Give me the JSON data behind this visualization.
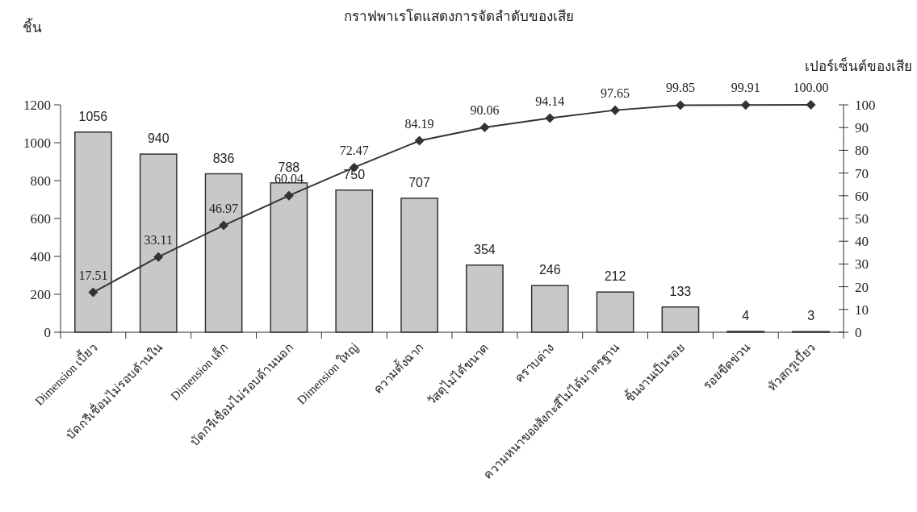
{
  "chart_data": {
    "type": "bar",
    "title": "กราฟพาเรโตแสดงการจัดลำดับของเสีย",
    "ylabel": "ชิ้น",
    "y2label": "เปอร์เซ็นต์ของเสีย",
    "categories": [
      "Dimension เบี้ยว",
      "บัดกรีเชื่อมไม่รอบด้านใน",
      "Dimension เล็ก",
      "บัดกรีเชื่อมไม่รอบด้านนอก",
      "Dimension ใหญ่",
      "ความตั้งฉาก",
      "วัสดุไม่ได้ขนาด",
      "คราบด่าง",
      "ความหนาของสังกะสีไม่ได้มาตรฐาน",
      "ชิ้นงานเป็นรอย",
      "รอยขีดข่วน",
      "หัวสกรูเบี้ยว"
    ],
    "series": [
      {
        "color": "#c8c8c8",
        "values": [
          1056,
          940,
          836,
          788,
          750,
          707,
          354,
          246,
          212,
          133,
          4,
          3
        ],
        "value_labels": [
          "1056",
          "940",
          "836",
          "788",
          "750",
          "707",
          "354",
          "246",
          "212",
          "133",
          "4",
          "3"
        ]
      },
      {
        "type": "line",
        "axis": "y2",
        "color": "#333333",
        "marker": "diamond",
        "values": [
          17.51,
          33.11,
          46.97,
          60.04,
          72.47,
          84.19,
          90.06,
          94.14,
          97.65,
          99.85,
          99.91,
          100.0
        ],
        "value_labels": [
          "17.51",
          "33.11",
          "46.97",
          "60.04",
          "72.47",
          "84.19",
          "90.06",
          "94.14",
          "97.65",
          "99.85",
          "99.91",
          "100.00"
        ]
      }
    ],
    "ylim": [
      0,
      1200
    ],
    "yticks": [
      0,
      200,
      400,
      600,
      800,
      1000,
      1200
    ],
    "y2lim": [
      0,
      100
    ],
    "y2ticks": [
      0,
      10,
      20,
      30,
      40,
      50,
      60,
      70,
      80,
      90,
      100
    ]
  }
}
